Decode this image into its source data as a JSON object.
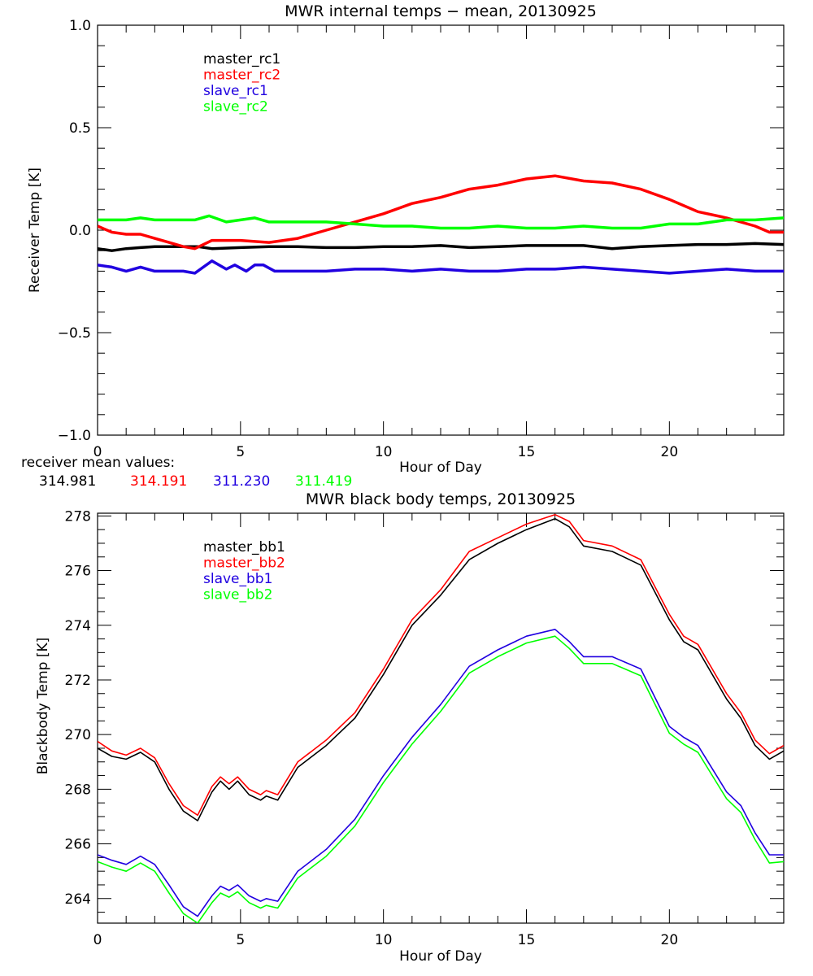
{
  "chart_data": [
    {
      "type": "line",
      "title": "MWR internal temps − mean, 20130925",
      "xlabel": "Hour of Day",
      "ylabel": "Receiver Temp [K]",
      "xlim": [
        0,
        24
      ],
      "ylim": [
        -1.0,
        1.0
      ],
      "xticks": [
        0,
        5,
        10,
        15,
        20
      ],
      "xtick_labels": [
        "0",
        "5",
        "10",
        "15",
        "20"
      ],
      "yticks": [
        -1.0,
        -0.5,
        0.0,
        0.5,
        1.0
      ],
      "ytick_labels": [
        "−1.0",
        "−0.5",
        "0.0",
        "0.5",
        "1.0"
      ],
      "grid": false,
      "legend_position": "top-left",
      "footer": {
        "label": "receiver mean values:",
        "values": [
          {
            "text": "314.981",
            "color": "#000000"
          },
          {
            "text": "314.191",
            "color": "#ff0000"
          },
          {
            "text": "311.230",
            "color": "#2000e0"
          },
          {
            "text": "311.419",
            "color": "#00ff00"
          }
        ]
      },
      "series": [
        {
          "name": "master_rc1",
          "color": "#000000",
          "x": [
            0,
            0.5,
            1,
            1.5,
            2,
            2.5,
            3,
            3.5,
            4,
            5,
            6,
            7,
            8,
            9,
            10,
            11,
            12,
            13,
            14,
            15,
            16,
            17,
            18,
            19,
            20,
            21,
            22,
            23,
            24
          ],
          "y": [
            -0.09,
            -0.1,
            -0.09,
            -0.085,
            -0.08,
            -0.08,
            -0.08,
            -0.08,
            -0.09,
            -0.085,
            -0.08,
            -0.08,
            -0.085,
            -0.085,
            -0.08,
            -0.08,
            -0.075,
            -0.085,
            -0.08,
            -0.075,
            -0.075,
            -0.075,
            -0.09,
            -0.08,
            -0.075,
            -0.07,
            -0.07,
            -0.065,
            -0.07
          ]
        },
        {
          "name": "master_rc2",
          "color": "#ff0000",
          "x": [
            0,
            0.5,
            1,
            1.5,
            2,
            2.5,
            3,
            3.4,
            4,
            5,
            6,
            7,
            8,
            9,
            10,
            11,
            12,
            13,
            14,
            15,
            16,
            17,
            18,
            19,
            20,
            21,
            22,
            23,
            23.5,
            24
          ],
          "y": [
            0.02,
            -0.01,
            -0.02,
            -0.02,
            -0.04,
            -0.06,
            -0.08,
            -0.09,
            -0.05,
            -0.05,
            -0.06,
            -0.04,
            0.0,
            0.04,
            0.08,
            0.13,
            0.16,
            0.2,
            0.22,
            0.25,
            0.265,
            0.24,
            0.23,
            0.2,
            0.15,
            0.09,
            0.06,
            0.02,
            -0.01,
            -0.01
          ]
        },
        {
          "name": "slave_rc1",
          "color": "#2000e0",
          "x": [
            0,
            0.5,
            1,
            1.5,
            2,
            3,
            3.4,
            4,
            4.5,
            4.8,
            5.2,
            5.5,
            5.8,
            6.2,
            7,
            8,
            9,
            10,
            11,
            12,
            13,
            14,
            15,
            16,
            17,
            18,
            19,
            20,
            21,
            22,
            23,
            24
          ],
          "y": [
            -0.17,
            -0.18,
            -0.2,
            -0.18,
            -0.2,
            -0.2,
            -0.21,
            -0.15,
            -0.19,
            -0.17,
            -0.2,
            -0.17,
            -0.17,
            -0.2,
            -0.2,
            -0.2,
            -0.19,
            -0.19,
            -0.2,
            -0.19,
            -0.2,
            -0.2,
            -0.19,
            -0.19,
            -0.18,
            -0.19,
            -0.2,
            -0.21,
            -0.2,
            -0.19,
            -0.2,
            -0.2
          ]
        },
        {
          "name": "slave_rc2",
          "color": "#00ff00",
          "x": [
            0,
            0.5,
            1,
            1.5,
            2,
            3,
            3.4,
            3.9,
            4.5,
            5.5,
            6,
            7,
            8,
            9,
            10,
            11,
            12,
            13,
            14,
            15,
            16,
            17,
            18,
            19,
            20,
            21,
            22,
            23,
            24
          ],
          "y": [
            0.05,
            0.05,
            0.05,
            0.06,
            0.05,
            0.05,
            0.05,
            0.07,
            0.04,
            0.06,
            0.04,
            0.04,
            0.04,
            0.03,
            0.02,
            0.02,
            0.01,
            0.01,
            0.02,
            0.01,
            0.01,
            0.02,
            0.01,
            0.01,
            0.03,
            0.03,
            0.05,
            0.05,
            0.06
          ]
        }
      ]
    },
    {
      "type": "line",
      "title": "MWR black body temps, 20130925",
      "xlabel": "Hour of Day",
      "ylabel": "Blackbody Temp [K]",
      "xlim": [
        0,
        24
      ],
      "ylim": [
        263.1,
        278.1
      ],
      "xticks": [
        0,
        5,
        10,
        15,
        20
      ],
      "xtick_labels": [
        "0",
        "5",
        "10",
        "15",
        "20"
      ],
      "yticks": [
        264,
        266,
        268,
        270,
        272,
        274,
        276,
        278
      ],
      "ytick_labels": [
        "264",
        "266",
        "268",
        "270",
        "272",
        "274",
        "276",
        "278"
      ],
      "grid": false,
      "legend_position": "top-left",
      "series": [
        {
          "name": "master_bb1",
          "color": "#000000",
          "x": [
            0,
            0.5,
            1,
            1.5,
            2,
            2.5,
            3,
            3.5,
            4,
            4.3,
            4.6,
            4.9,
            5.3,
            5.7,
            5.9,
            6.3,
            7,
            8,
            9,
            10,
            11,
            12,
            13,
            14,
            15,
            16,
            16.5,
            17,
            18,
            19,
            20,
            20.5,
            21,
            22,
            22.5,
            23,
            23.5,
            24
          ],
          "y": [
            269.5,
            269.2,
            269.1,
            269.35,
            269.0,
            268.0,
            267.2,
            266.85,
            267.9,
            268.3,
            268.0,
            268.3,
            267.8,
            267.6,
            267.75,
            267.6,
            268.8,
            269.6,
            270.6,
            272.2,
            274.0,
            275.1,
            276.4,
            277.0,
            277.5,
            277.9,
            277.6,
            276.9,
            276.7,
            276.2,
            274.2,
            273.4,
            273.1,
            271.3,
            270.6,
            269.6,
            269.1,
            269.4
          ]
        },
        {
          "name": "master_bb2",
          "color": "#ff0000",
          "x": [
            0,
            0.5,
            1,
            1.5,
            2,
            2.5,
            3,
            3.5,
            4,
            4.3,
            4.6,
            4.9,
            5.3,
            5.7,
            5.9,
            6.3,
            7,
            8,
            9,
            10,
            11,
            12,
            13,
            14,
            15,
            16,
            16.5,
            17,
            18,
            19,
            20,
            20.5,
            21,
            22,
            22.5,
            23,
            23.5,
            24
          ],
          "y": [
            269.75,
            269.4,
            269.25,
            269.5,
            269.15,
            268.2,
            267.4,
            267.05,
            268.1,
            268.45,
            268.2,
            268.45,
            268.0,
            267.8,
            267.95,
            267.8,
            269.0,
            269.8,
            270.8,
            272.4,
            274.2,
            275.3,
            276.7,
            277.2,
            277.7,
            278.05,
            277.8,
            277.1,
            276.9,
            276.4,
            274.4,
            273.6,
            273.3,
            271.5,
            270.8,
            269.8,
            269.3,
            269.6
          ]
        },
        {
          "name": "slave_bb1",
          "color": "#2000e0",
          "x": [
            0,
            0.5,
            1,
            1.5,
            2,
            2.5,
            3,
            3.5,
            4,
            4.3,
            4.6,
            4.9,
            5.3,
            5.7,
            5.9,
            6.3,
            7,
            8,
            9,
            10,
            11,
            12,
            13,
            14,
            15,
            16,
            16.5,
            17,
            18,
            19,
            20,
            20.5,
            21,
            22,
            22.5,
            23,
            23.5,
            24
          ],
          "y": [
            265.6,
            265.4,
            265.25,
            265.55,
            265.25,
            264.5,
            263.7,
            263.35,
            264.1,
            264.45,
            264.3,
            264.5,
            264.1,
            263.9,
            264.0,
            263.9,
            265.0,
            265.8,
            266.9,
            268.5,
            269.9,
            271.1,
            272.5,
            273.1,
            273.6,
            273.85,
            273.4,
            272.85,
            272.85,
            272.4,
            270.3,
            269.9,
            269.6,
            267.9,
            267.4,
            266.4,
            265.6,
            265.6
          ]
        },
        {
          "name": "slave_bb2",
          "color": "#00ff00",
          "x": [
            0,
            0.5,
            1,
            1.5,
            2,
            2.5,
            3,
            3.5,
            4,
            4.3,
            4.6,
            4.9,
            5.3,
            5.7,
            5.9,
            6.3,
            7,
            8,
            9,
            10,
            11,
            12,
            13,
            14,
            15,
            16,
            16.5,
            17,
            18,
            19,
            20,
            20.5,
            21,
            22,
            22.5,
            23,
            23.5,
            24
          ],
          "y": [
            265.35,
            265.15,
            265.0,
            265.3,
            265.0,
            264.2,
            263.45,
            263.1,
            263.85,
            264.2,
            264.05,
            264.25,
            263.85,
            263.65,
            263.75,
            263.65,
            264.75,
            265.55,
            266.65,
            268.25,
            269.65,
            270.85,
            272.25,
            272.85,
            273.35,
            273.6,
            273.15,
            272.6,
            272.6,
            272.15,
            270.05,
            269.65,
            269.35,
            267.65,
            267.15,
            266.15,
            265.3,
            265.35
          ]
        }
      ]
    }
  ]
}
